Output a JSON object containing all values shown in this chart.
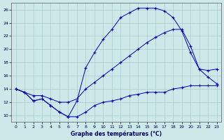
{
  "title": "Graphe des températures (°C)",
  "background_color": "#cce8e8",
  "grid_color": "#aacccc",
  "line_color": "#0000bb",
  "xlim": [
    -0.5,
    23.5
  ],
  "ylim": [
    9,
    27
  ],
  "xticks": [
    0,
    1,
    2,
    3,
    4,
    5,
    6,
    7,
    8,
    9,
    10,
    11,
    12,
    13,
    14,
    15,
    16,
    17,
    18,
    19,
    20,
    21,
    22,
    23
  ],
  "yticks": [
    10,
    12,
    14,
    16,
    18,
    20,
    22,
    24,
    26
  ],
  "figsize": [
    3.2,
    2.0
  ],
  "dpi": 100,
  "series_min": [
    14.0,
    13.5,
    12.2,
    12.5,
    11.5,
    10.5,
    9.8,
    9.8,
    10.5,
    11.5,
    12.0,
    12.2,
    12.5,
    13.0,
    13.2,
    13.5,
    13.5,
    13.5,
    14.0,
    14.2,
    14.5,
    14.5,
    14.5,
    14.5
  ],
  "series_max": [
    14.0,
    13.5,
    12.2,
    12.5,
    11.5,
    10.5,
    9.8,
    12.2,
    17.2,
    19.5,
    21.5,
    23.0,
    24.8,
    25.5,
    26.2,
    26.2,
    26.2,
    25.8,
    24.8,
    22.8,
    19.5,
    17.0,
    16.8,
    17.0
  ],
  "series_mean": [
    14.0,
    13.5,
    13.0,
    13.0,
    12.5,
    12.0,
    12.0,
    12.5,
    14.0,
    15.0,
    16.0,
    17.0,
    18.0,
    19.0,
    20.0,
    21.0,
    21.8,
    22.5,
    23.0,
    23.0,
    20.5,
    17.0,
    15.8,
    14.8
  ]
}
